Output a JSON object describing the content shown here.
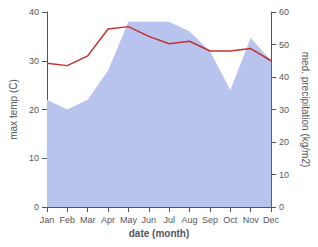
{
  "chart_data": {
    "type": "line",
    "categories": [
      "Jan",
      "Feb",
      "Mar",
      "Apr",
      "May",
      "Jun",
      "Jul",
      "Aug",
      "Sep",
      "Oct",
      "Nov",
      "Dec"
    ],
    "xlabel": "date (month)",
    "ylabel": "max temp (C)",
    "y2label": "med. precipitation (kg/m2)",
    "ylim": [
      0,
      40
    ],
    "yticks": [
      0,
      10,
      20,
      30,
      40
    ],
    "y2lim": [
      0,
      60
    ],
    "y2ticks": [
      0,
      10,
      20,
      30,
      40,
      50,
      60
    ],
    "grid": false,
    "series": [
      {
        "type": "area",
        "axis": "y2",
        "color": "#b8c4ee",
        "values": [
          33,
          30,
          33,
          42,
          57,
          57,
          57,
          54,
          48,
          36,
          52,
          45
        ]
      },
      {
        "type": "line",
        "color": "#c03030",
        "values": [
          29.5,
          29.0,
          31.0,
          36.5,
          37.0,
          35.0,
          33.5,
          34.0,
          32.0,
          32.0,
          32.5,
          30.0
        ]
      }
    ]
  }
}
